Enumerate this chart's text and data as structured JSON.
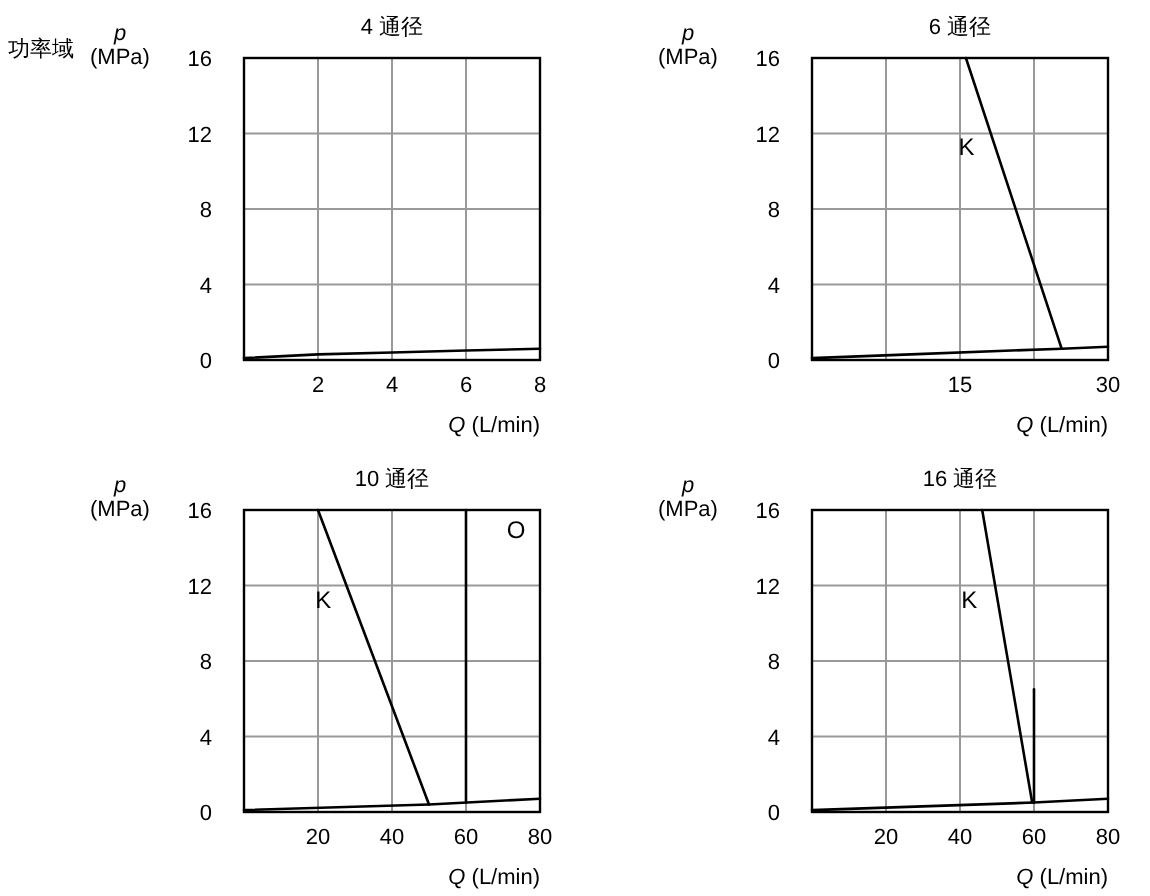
{
  "chart_data": [
    {
      "type": "line",
      "title": "4 通径",
      "xlabel": "Q (L/min)",
      "ylabel": "p (MPa)",
      "xlim": [
        0,
        8
      ],
      "xticks": [
        2,
        4,
        6,
        8
      ],
      "ylim": [
        0,
        16
      ],
      "yticks": [
        0,
        4,
        8,
        12,
        16
      ],
      "grid": true,
      "annotations": [
        "功率域"
      ],
      "series": [
        {
          "color": "#000000",
          "x": [
            0,
            2,
            4,
            6,
            8
          ],
          "values": [
            0.1,
            0.3,
            0.4,
            0.5,
            0.6
          ]
        }
      ]
    },
    {
      "type": "line",
      "title": "6 通径",
      "xlabel": "Q (L/min)",
      "ylabel": "p (MPa)",
      "xlim": [
        0,
        30
      ],
      "xticks": [
        {
          "value": 7.5,
          "label": null
        },
        15,
        {
          "value": 22.5,
          "label": null
        },
        30
      ],
      "ylim": [
        0,
        16
      ],
      "yticks": [
        0,
        4,
        8,
        12,
        16
      ],
      "grid": true,
      "series": [
        {
          "color": "#000000",
          "x": [
            0,
            10,
            25.3,
            30
          ],
          "values": [
            0.1,
            0.3,
            0.6,
            0.7
          ]
        },
        {
          "name": "K",
          "color": "#000000",
          "x": [
            15.6,
            25.3
          ],
          "values": [
            16,
            0.6
          ]
        }
      ]
    },
    {
      "type": "line",
      "title": "10 通径",
      "xlabel": "Q (L/min)",
      "ylabel": "p (MPa)",
      "xlim": [
        0,
        80
      ],
      "xticks": [
        20,
        40,
        60,
        80
      ],
      "ylim": [
        0,
        16
      ],
      "yticks": [
        0,
        4,
        8,
        12,
        16
      ],
      "grid": true,
      "series": [
        {
          "color": "#000000",
          "x": [
            0,
            50,
            80
          ],
          "values": [
            0.1,
            0.4,
            0.7
          ]
        },
        {
          "name": "K",
          "color": "#000000",
          "x": [
            20,
            50
          ],
          "values": [
            16,
            0.4
          ]
        },
        {
          "name": "O",
          "color": "#000000",
          "x": [
            60,
            60
          ],
          "values": [
            0.5,
            16
          ]
        }
      ]
    },
    {
      "type": "line",
      "title": "16 通径",
      "xlabel": "Q (L/min)",
      "ylabel": "p (MPa)",
      "xlim": [
        0,
        80
      ],
      "xticks": [
        20,
        40,
        60,
        80
      ],
      "ylim": [
        0,
        16
      ],
      "yticks": [
        0,
        4,
        8,
        12,
        16
      ],
      "grid": true,
      "series": [
        {
          "color": "#000000",
          "x": [
            0,
            60,
            80
          ],
          "values": [
            0.1,
            0.5,
            0.7
          ]
        },
        {
          "name": "K",
          "color": "#000000",
          "x": [
            46,
            59.5
          ],
          "values": [
            16,
            0.5
          ]
        },
        {
          "color": "#000000",
          "x": [
            60,
            60
          ],
          "values": [
            0.5,
            6.5
          ]
        }
      ]
    }
  ]
}
